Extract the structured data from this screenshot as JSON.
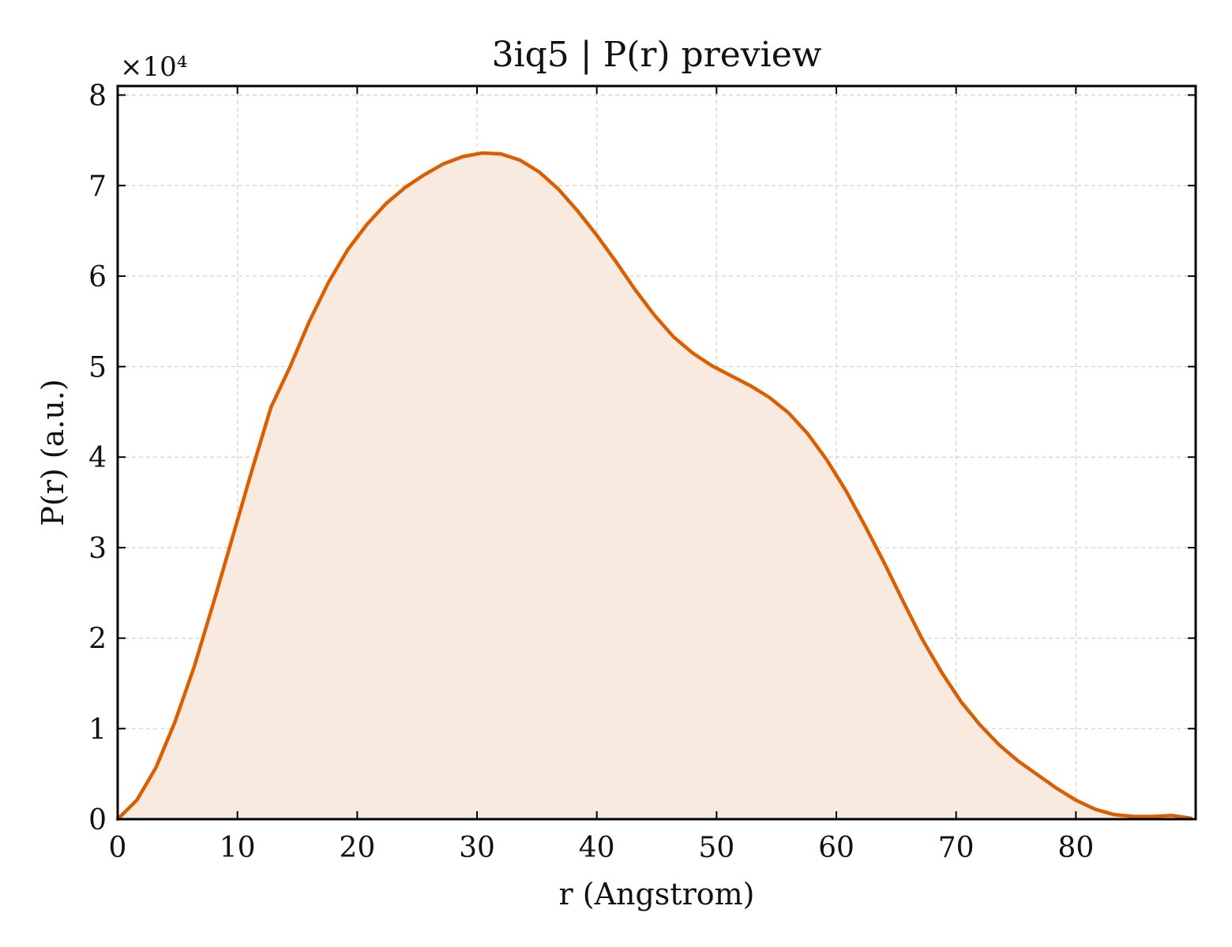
{
  "chart_data": {
    "type": "area",
    "title": "3iq5 | P(r) preview",
    "xlabel": "r (Angstrom)",
    "ylabel": "P(r) (a.u.)",
    "y_offset_label": "×10⁴",
    "xlim": [
      0,
      90
    ],
    "ylim": [
      0,
      8.1
    ],
    "y_scale_factor": 10000,
    "x_ticks": [
      0,
      10,
      20,
      30,
      40,
      50,
      60,
      70,
      80
    ],
    "x_tick_labels": [
      "0",
      "10",
      "20",
      "30",
      "40",
      "50",
      "60",
      "70",
      "80"
    ],
    "y_ticks": [
      0,
      1,
      2,
      3,
      4,
      5,
      6,
      7,
      8
    ],
    "y_tick_labels": [
      "0",
      "1",
      "2",
      "3",
      "4",
      "5",
      "6",
      "7",
      "8"
    ],
    "grid": true,
    "legend": "none",
    "line_color": "#d95f02",
    "fill_color": "#f9eadf",
    "series": [
      {
        "x": [
          0,
          1.6,
          3.2,
          4.8,
          6.4,
          8.0,
          9.6,
          11.2,
          12.8,
          14.4,
          16.0,
          17.6,
          19.2,
          20.8,
          22.4,
          24.0,
          25.6,
          27.2,
          28.8,
          30.4,
          32.0,
          33.6,
          35.2,
          36.8,
          38.4,
          40.0,
          41.6,
          43.2,
          44.8,
          46.4,
          48.0,
          49.6,
          51.2,
          52.8,
          54.4,
          56.0,
          57.6,
          59.2,
          60.8,
          62.4,
          64.0,
          65.6,
          67.2,
          68.8,
          70.4,
          72.0,
          73.6,
          75.2,
          76.8,
          78.4,
          80.0,
          81.6,
          83.2,
          84.8,
          86.4,
          88.0,
          89.6
        ],
        "y": [
          0.0,
          0.21,
          0.57,
          1.08,
          1.69,
          2.39,
          3.12,
          3.85,
          4.55,
          5.0,
          5.5,
          5.93,
          6.29,
          6.57,
          6.8,
          6.98,
          7.12,
          7.24,
          7.32,
          7.36,
          7.35,
          7.28,
          7.15,
          6.96,
          6.72,
          6.45,
          6.16,
          5.85,
          5.57,
          5.33,
          5.15,
          5.01,
          4.9,
          4.79,
          4.66,
          4.49,
          4.26,
          3.97,
          3.63,
          3.24,
          2.83,
          2.4,
          1.98,
          1.62,
          1.3,
          1.04,
          0.82,
          0.64,
          0.49,
          0.34,
          0.21,
          0.11,
          0.05,
          0.03,
          0.03,
          0.04,
          0.01
        ]
      }
    ]
  }
}
